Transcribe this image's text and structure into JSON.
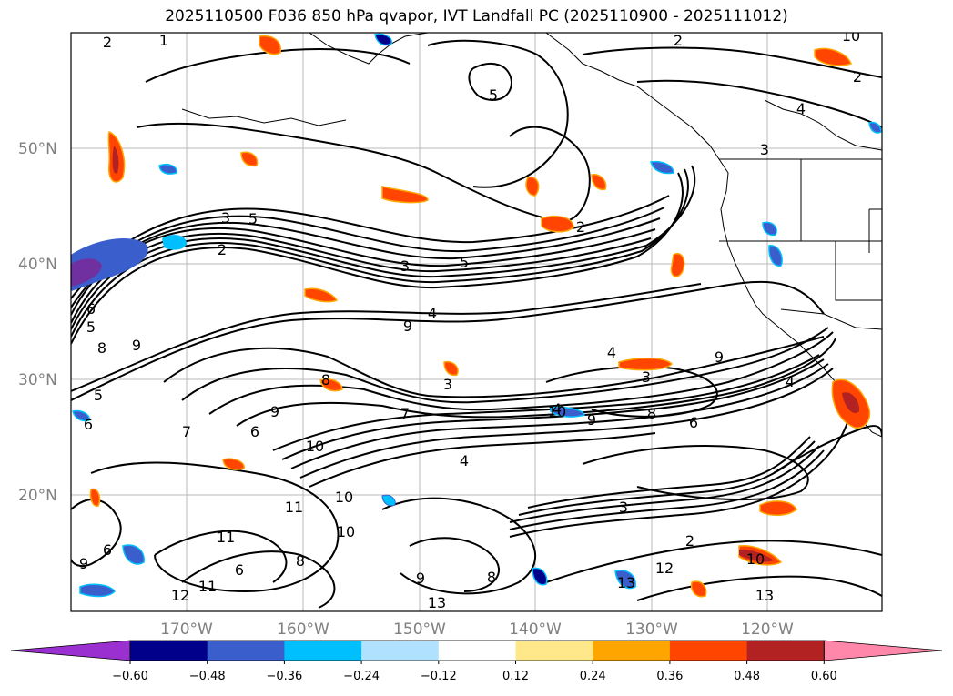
{
  "title": "2025110500 F036 850 hPa qvapor, IVT Landfall PC (2025110900 - 2025111012)",
  "lat_labels": [
    "50°N",
    "40°N",
    "30°N",
    "20°N"
  ],
  "lon_labels": [
    "170°W",
    "160°W",
    "150°W",
    "140°W",
    "130°W",
    "120°W"
  ],
  "colorbar": {
    "ticks": [
      "−0.60",
      "−0.48",
      "−0.36",
      "−0.24",
      "−0.12",
      "0.12",
      "0.24",
      "0.36",
      "0.48",
      "0.60"
    ],
    "colors": [
      "#9b30d0",
      "#00008b",
      "#3a5fcd",
      "#00bfff",
      "#b0e2ff",
      "#ffffff",
      "#ffe88a",
      "#ffa500",
      "#ff4500",
      "#b22222",
      "#ff88aa"
    ]
  },
  "contour_labels": [
    "1",
    "2",
    "5",
    "2",
    "10",
    "2",
    "4",
    "3",
    "2",
    "3",
    "5",
    "2",
    "3",
    "5",
    "6",
    "5",
    "4",
    "9",
    "8",
    "9",
    "4",
    "9",
    "3",
    "5",
    "6",
    "7",
    "6",
    "9",
    "8",
    "3",
    "10",
    "9",
    "8",
    "4",
    "7",
    "6",
    "10",
    "4",
    "11",
    "10",
    "3",
    "11",
    "8",
    "6",
    "10",
    "6",
    "12",
    "11",
    "8",
    "9",
    "13",
    "12",
    "13",
    "13",
    "10",
    "9",
    "2",
    "4"
  ]
}
